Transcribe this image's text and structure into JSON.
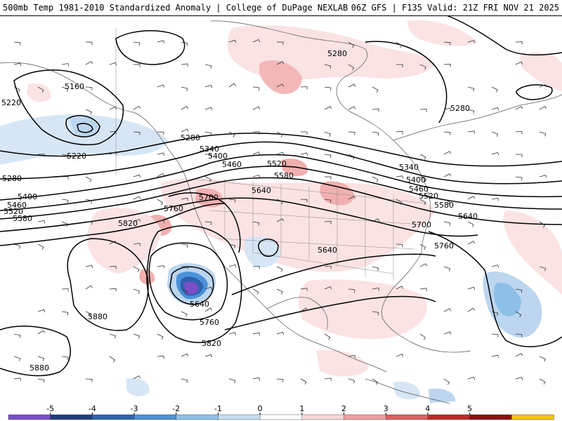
{
  "header": {
    "title_left": "500mb Temp 1981-2010 Standardized Anomaly | College of DuPage NEXLAB",
    "title_right": "06Z GFS | F135 Valid: 21Z FRI NOV 21 2025"
  },
  "contour_labels": [
    "5160",
    "5220",
    "5280",
    "5340",
    "5400",
    "5460",
    "5520",
    "5580",
    "5640",
    "5700",
    "5760",
    "5820",
    "5880"
  ],
  "colorbar": {
    "ticks": [
      "-5",
      "-4",
      "-3",
      "-2",
      "-1",
      "0",
      "1",
      "2",
      "3",
      "4",
      "5"
    ],
    "colors": [
      "#7a4fc7",
      "#1f3f7f",
      "#2e63b0",
      "#4c92d8",
      "#8ebfe7",
      "#c6dcf1",
      "#ffffff",
      "#fad7d7",
      "#ef9f9f",
      "#e06060",
      "#c42828",
      "#8b0d0d",
      "#f6c40c"
    ]
  }
}
